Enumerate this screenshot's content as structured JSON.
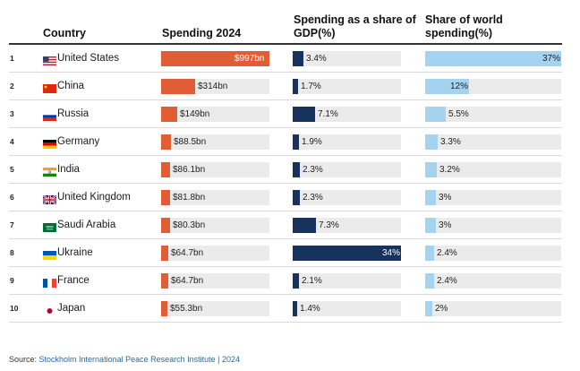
{
  "headers": {
    "country": "Country",
    "spending": "Spending 2024",
    "gdp": "Spending as a share of GDP(%)",
    "world": "Share of world spending(%)"
  },
  "chart_data": {
    "type": "table",
    "columns": [
      "Country",
      "Spending 2024",
      "Spending as a share of GDP(%)",
      "Share of world spending(%)"
    ],
    "rows": [
      {
        "rank": "1",
        "country": "United States",
        "spending": 997,
        "spending_label": "$997bn",
        "gdp": 3.4,
        "gdp_label": "3.4%",
        "world": 37,
        "world_label": "37%"
      },
      {
        "rank": "2",
        "country": "China",
        "spending": 314,
        "spending_label": "$314bn",
        "gdp": 1.7,
        "gdp_label": "1.7%",
        "world": 12,
        "world_label": "12%"
      },
      {
        "rank": "3",
        "country": "Russia",
        "spending": 149,
        "spending_label": "$149bn",
        "gdp": 7.1,
        "gdp_label": "7.1%",
        "world": 5.5,
        "world_label": "5.5%"
      },
      {
        "rank": "4",
        "country": "Germany",
        "spending": 88.5,
        "spending_label": "$88.5bn",
        "gdp": 1.9,
        "gdp_label": "1.9%",
        "world": 3.3,
        "world_label": "3.3%"
      },
      {
        "rank": "5",
        "country": "India",
        "spending": 86.1,
        "spending_label": "$86.1bn",
        "gdp": 2.3,
        "gdp_label": "2.3%",
        "world": 3.2,
        "world_label": "3.2%"
      },
      {
        "rank": "6",
        "country": "United Kingdom",
        "spending": 81.8,
        "spending_label": "$81.8bn",
        "gdp": 2.3,
        "gdp_label": "2.3%",
        "world": 3,
        "world_label": "3%"
      },
      {
        "rank": "7",
        "country": "Saudi Arabia",
        "spending": 80.3,
        "spending_label": "$80.3bn",
        "gdp": 7.3,
        "gdp_label": "7.3%",
        "world": 3,
        "world_label": "3%"
      },
      {
        "rank": "8",
        "country": "Ukraine",
        "spending": 64.7,
        "spending_label": "$64.7bn",
        "gdp": 34,
        "gdp_label": "34%",
        "world": 2.4,
        "world_label": "2.4%"
      },
      {
        "rank": "9",
        "country": "France",
        "spending": 64.7,
        "spending_label": "$64.7bn",
        "gdp": 2.1,
        "gdp_label": "2.1%",
        "world": 2.4,
        "world_label": "2.4%"
      },
      {
        "rank": "10",
        "country": "Japan",
        "spending": 55.3,
        "spending_label": "$55.3bn",
        "gdp": 1.4,
        "gdp_label": "1.4%",
        "world": 2,
        "world_label": "2%"
      }
    ],
    "scales": {
      "spending_max": 997,
      "gdp_max": 34,
      "world_max": 37
    },
    "colors": {
      "spending": "#e05d36",
      "gdp": "#17325d",
      "world": "#a3d3ee",
      "track": "#ebebeb"
    }
  },
  "source": {
    "label": "Source: ",
    "text": "Stockholm International Peace Research Institute | 2024"
  }
}
